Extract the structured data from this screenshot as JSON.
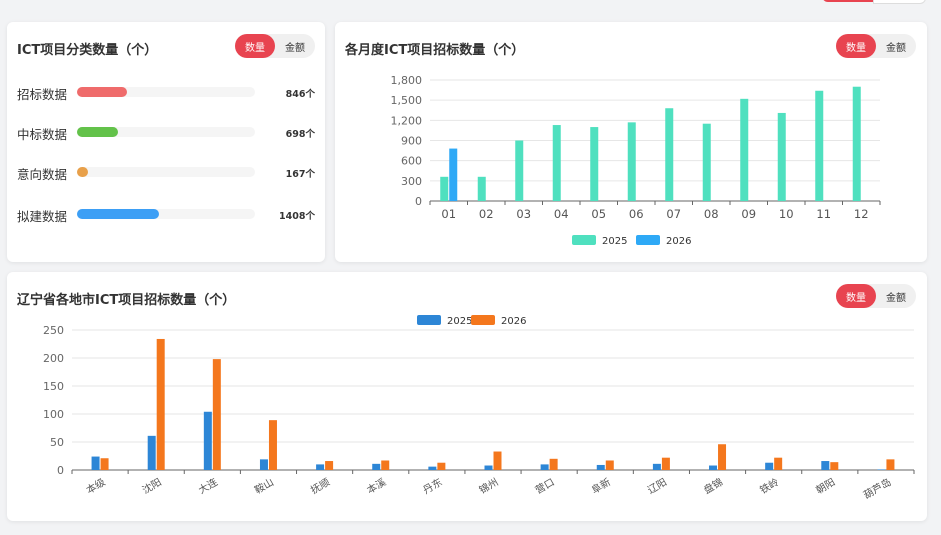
{
  "colors": {
    "accent": "#e84450",
    "s2025a": "#4fe0bf",
    "s2026a": "#2ea9f6",
    "s2025b": "#2d86d6",
    "s2026b": "#f4771d"
  },
  "toggle": {
    "count": "数量",
    "amount": "金额"
  },
  "card1": {
    "title": "ICT项目分类数量（个）",
    "rows": [
      {
        "label": "招标数据",
        "display": "846个",
        "fraction": 0.28,
        "color": "#ef6b6b"
      },
      {
        "label": "中标数据",
        "display": "698个",
        "fraction": 0.23,
        "color": "#63c24a"
      },
      {
        "label": "意向数据",
        "display": "167个",
        "fraction": 0.06,
        "color": "#e8a04a"
      },
      {
        "label": "拟建数据",
        "display": "1408个",
        "fraction": 0.46,
        "color": "#3d9ff5"
      }
    ]
  },
  "card2": {
    "title": "各月度ICT项目招标数量（个）"
  },
  "card3": {
    "title": "辽宁省各地市ICT项目招标数量（个）"
  },
  "chart_data": [
    {
      "type": "bar",
      "categories": [
        "01",
        "02",
        "03",
        "04",
        "05",
        "06",
        "07",
        "08",
        "09",
        "10",
        "11",
        "12"
      ],
      "series": [
        {
          "name": "2025",
          "values": [
            360,
            360,
            900,
            1130,
            1100,
            1170,
            1380,
            1150,
            1520,
            1310,
            1640,
            1700
          ]
        },
        {
          "name": "2026",
          "values": [
            780,
            null,
            null,
            null,
            null,
            null,
            null,
            null,
            null,
            null,
            null,
            null
          ]
        }
      ],
      "yticks": [
        0,
        300,
        600,
        900,
        1200,
        1500,
        1800
      ],
      "ytick_labels": [
        "0",
        "300",
        "600",
        "900",
        "1,200",
        "1,500",
        "1,800"
      ],
      "ylim": [
        0,
        1800
      ],
      "legend": "bottom-center"
    },
    {
      "type": "bar",
      "categories": [
        "本级",
        "沈阳",
        "大连",
        "鞍山",
        "抚顺",
        "本溪",
        "丹东",
        "锦州",
        "营口",
        "阜新",
        "辽阳",
        "盘锦",
        "铁岭",
        "朝阳",
        "葫芦岛"
      ],
      "series": [
        {
          "name": "2025",
          "values": [
            24,
            61,
            104,
            19,
            10,
            11,
            6,
            8,
            10,
            9,
            11,
            8,
            13,
            16,
            1
          ]
        },
        {
          "name": "2026",
          "values": [
            21,
            234,
            198,
            89,
            16,
            17,
            13,
            33,
            20,
            17,
            22,
            46,
            22,
            14,
            19
          ]
        }
      ],
      "yticks": [
        0,
        50,
        100,
        150,
        200,
        250
      ],
      "ytick_labels": [
        "0",
        "50",
        "100",
        "150",
        "200",
        "250"
      ],
      "ylim": [
        0,
        250
      ],
      "legend": "top-center"
    }
  ]
}
